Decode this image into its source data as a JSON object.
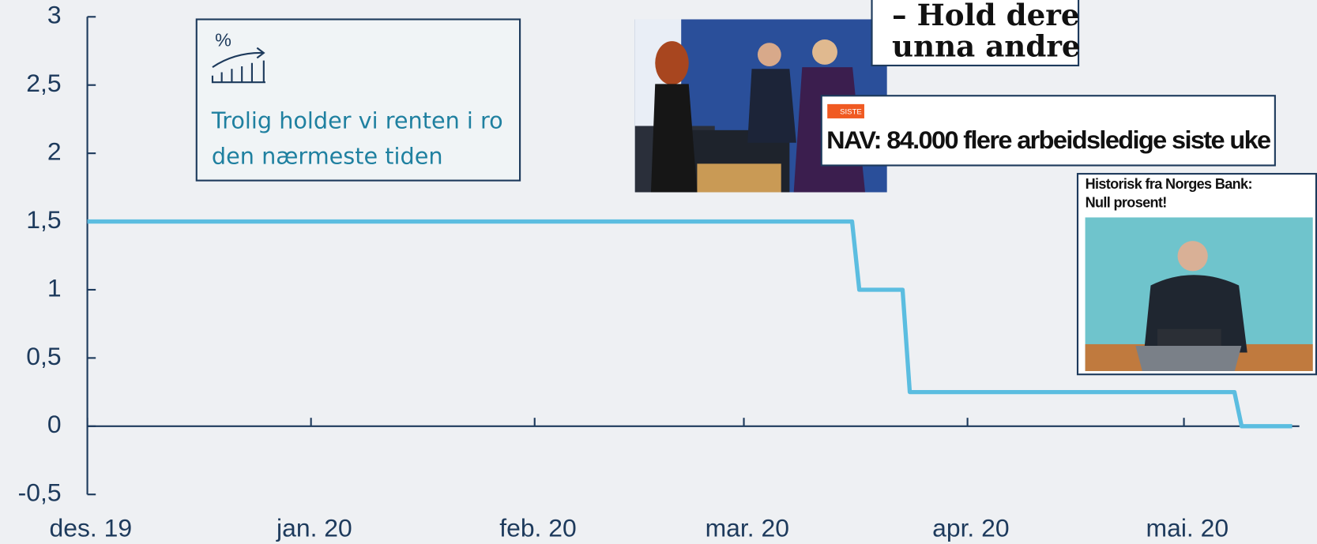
{
  "chart_data": {
    "type": "line",
    "x": [
      0,
      106,
      107,
      113,
      114,
      159,
      160,
      167
    ],
    "series": [
      {
        "color": "#5bbde0",
        "values": [
          1.5,
          1.5,
          1.0,
          1.0,
          0.25,
          0.25,
          0,
          0
        ]
      }
    ],
    "xlim": [
      0,
      168
    ],
    "xticks": [
      {
        "value": 0,
        "label": "des. 19"
      },
      {
        "value": 31,
        "label": "jan. 20"
      },
      {
        "value": 62,
        "label": "feb. 20"
      },
      {
        "value": 91,
        "label": "mar. 20"
      },
      {
        "value": 122,
        "label": "apr. 20"
      },
      {
        "value": 152,
        "label": "mai. 20"
      }
    ],
    "ylim": [
      -0.5,
      3
    ],
    "yticks": [
      {
        "value": -0.5,
        "label": "-0,5"
      },
      0,
      {
        "value": 0.5,
        "label": "0,5"
      },
      1,
      {
        "value": 1.5,
        "label": "1,5"
      },
      2,
      {
        "value": 2.5,
        "label": "2,5"
      },
      3
    ],
    "grid": false
  },
  "overlays": {
    "info_box": [
      "Trolig holder vi renten i ro",
      "den nærmeste tiden"
    ],
    "clipping_1": [
      "– Hold dere",
      "unna andre"
    ],
    "clipping_2": {
      "badge": "SISTE",
      "headline": "NAV: 84.000 flere arbeidsledige siste uke"
    },
    "clipping_3": [
      "Historisk fra Norges Bank:",
      "Null prosent!"
    ]
  }
}
